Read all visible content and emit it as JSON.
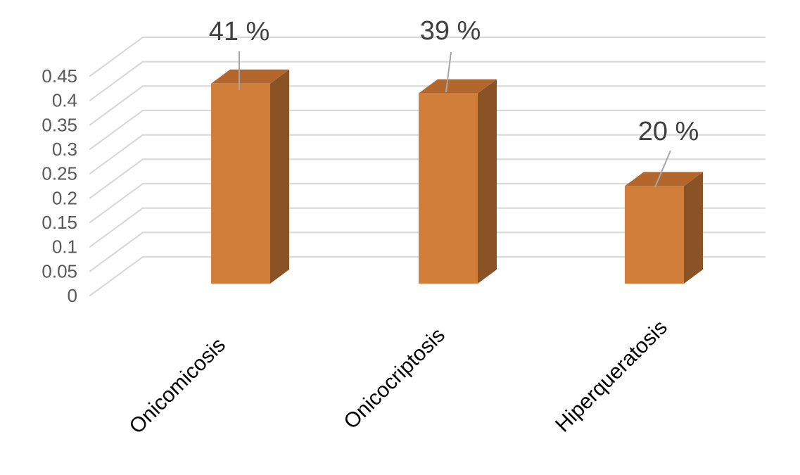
{
  "chart_data": {
    "type": "bar",
    "style": "3d-column",
    "title": "",
    "xlabel": "",
    "ylabel": "",
    "categories": [
      "Onicomicosis",
      "Onicocriptosis",
      "Hiperqueratosis"
    ],
    "values": [
      0.41,
      0.39,
      0.2
    ],
    "data_labels": [
      "41 %",
      "39 %",
      "20 %"
    ],
    "ylim": [
      0,
      0.45
    ],
    "ytick_step": 0.05,
    "ytick_labels": [
      "0",
      "0.05",
      "0.1",
      "0.15",
      "0.2",
      "0.25",
      "0.3",
      "0.35",
      "0.4",
      "0.45"
    ],
    "grid": true,
    "legend": false
  },
  "colors": {
    "background": "#FFFFFF",
    "bar_front": "#D17E3B",
    "bar_top": "#B4672C",
    "bar_side": "#8A5326",
    "gridline": "#D9D9D9",
    "leader_line": "#A6A6A6",
    "axis_label": "#595959",
    "data_label": "#404040",
    "category_label": "#000000"
  }
}
